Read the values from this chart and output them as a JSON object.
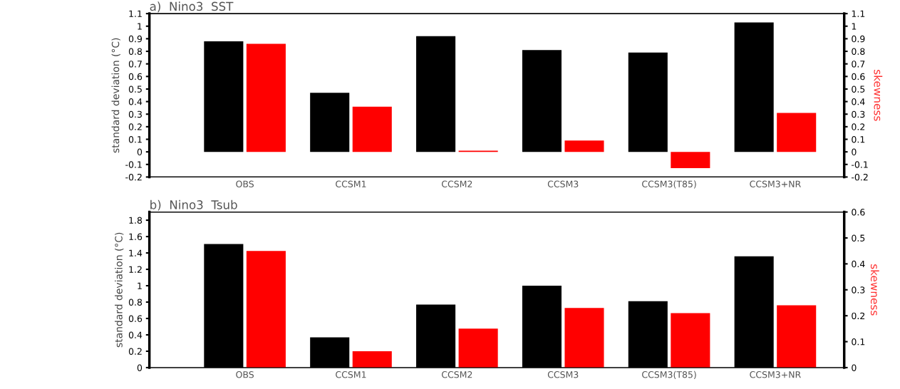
{
  "chart_data": [
    {
      "type": "bar",
      "title": "a)  Nino3  SST",
      "ylabel": "standard deviation (°C)",
      "y2label": "skewness",
      "categories": [
        "OBS",
        "CCSM1",
        "CCSM2",
        "CCSM3",
        "CCSM3(T85)",
        "CCSM3+NR"
      ],
      "series": [
        {
          "color": "#000000",
          "values": [
            0.88,
            0.47,
            0.92,
            0.81,
            0.79,
            1.03
          ]
        },
        {
          "color": "#ff0000",
          "axis": "y2",
          "values": [
            0.86,
            0.36,
            0.01,
            0.09,
            -0.13,
            0.31
          ]
        }
      ],
      "ylim": [
        -0.2,
        1.1
      ],
      "yticks": [
        -0.2,
        -0.1,
        0,
        0.1,
        0.2,
        0.3,
        0.4,
        0.5,
        0.6,
        0.7,
        0.8,
        0.9,
        1,
        1.1
      ],
      "y2lim": [
        -0.2,
        1.1
      ],
      "y2ticks": [
        -0.2,
        -0.1,
        0,
        0.1,
        0.2,
        0.3,
        0.4,
        0.5,
        0.6,
        0.7,
        0.8,
        0.9,
        1,
        1.1
      ],
      "grid": false,
      "legend": false
    },
    {
      "type": "bar",
      "title": "b)  Nino3  Tsub",
      "ylabel": "standard deviation (°C)",
      "y2label": "skewness",
      "categories": [
        "OBS",
        "CCSM1",
        "CCSM2",
        "CCSM3",
        "CCSM3(T85)",
        "CCSM3+NR"
      ],
      "series": [
        {
          "color": "#000000",
          "values": [
            1.51,
            0.37,
            0.77,
            1.0,
            0.81,
            1.36
          ]
        },
        {
          "color": "#ff0000",
          "axis": "y2",
          "values": [
            0.45,
            0.063,
            0.15,
            0.23,
            0.21,
            0.24
          ]
        }
      ],
      "ylim": [
        0,
        1.9
      ],
      "yticks": [
        0,
        0.2,
        0.4,
        0.6,
        0.8,
        1,
        1.2,
        1.4,
        1.6,
        1.8
      ],
      "y2lim": [
        0,
        0.6
      ],
      "y2ticks": [
        0,
        0.1,
        0.2,
        0.3,
        0.4,
        0.5,
        0.6
      ],
      "grid": false,
      "legend": false
    }
  ]
}
